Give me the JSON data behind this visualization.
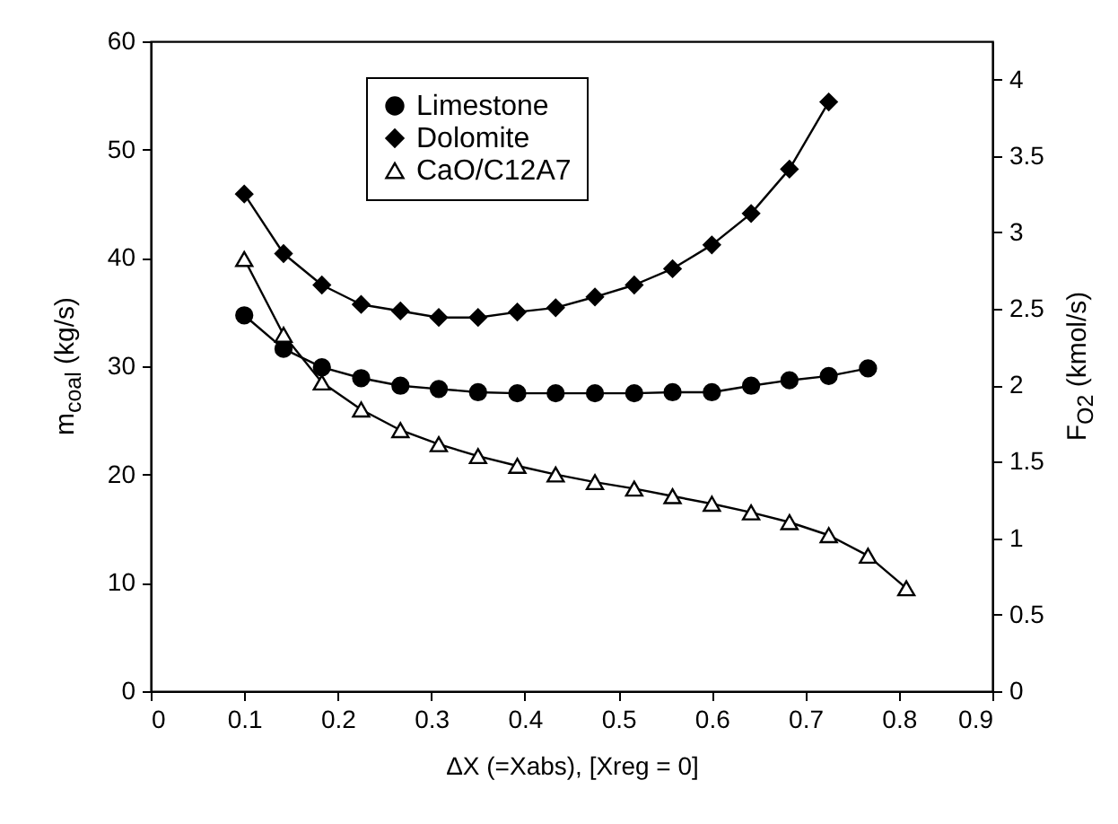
{
  "chart_data": {
    "type": "line",
    "xlabel": "ΔX (=Xabs), [Xreg = 0]",
    "ylabel": "m$_{coal}$ (kg/s)",
    "y2label": "F$_{O2}$ (kmol/s)",
    "xlim": [
      0,
      0.9
    ],
    "xticks": [
      0,
      0.1,
      0.2,
      0.3,
      0.4,
      0.5,
      0.6,
      0.7,
      0.8,
      0.9
    ],
    "ylim": [
      0,
      60
    ],
    "yticks": [
      0,
      10,
      20,
      30,
      40,
      50,
      60
    ],
    "y2lim": [
      0,
      4.25
    ],
    "y2ticks": [
      0,
      0.5,
      1,
      1.5,
      2,
      2.5,
      3,
      3.5,
      4
    ],
    "grid": false,
    "legend": "top",
    "series": [
      {
        "name": "Limestone",
        "color": "#000000",
        "marker": "circle",
        "x": [
          0.1,
          0.142,
          0.183,
          0.225,
          0.267,
          0.308,
          0.35,
          0.392,
          0.433,
          0.475,
          0.517,
          0.558,
          0.6,
          0.642,
          0.683,
          0.725,
          0.767
        ],
        "values": [
          34.7,
          31.6,
          29.9,
          28.9,
          28.2,
          27.9,
          27.6,
          27.5,
          27.5,
          27.5,
          27.5,
          27.6,
          27.6,
          28.2,
          28.7,
          29.1,
          29.8
        ]
      },
      {
        "name": "Dolomite",
        "color": "#000000",
        "marker": "diamond",
        "x": [
          0.1,
          0.142,
          0.183,
          0.225,
          0.267,
          0.308,
          0.35,
          0.392,
          0.433,
          0.475,
          0.517,
          0.558,
          0.6,
          0.642,
          0.683,
          0.725
        ],
        "values": [
          45.9,
          40.4,
          37.5,
          35.7,
          35.1,
          34.5,
          34.5,
          35.0,
          35.4,
          36.4,
          37.5,
          39.0,
          41.2,
          44.1,
          48.2,
          54.4
        ]
      },
      {
        "name": "CaO/C12A7",
        "color": "#000000",
        "marker": "triangle",
        "x": [
          0.1,
          0.142,
          0.183,
          0.225,
          0.267,
          0.308,
          0.35,
          0.392,
          0.433,
          0.475,
          0.517,
          0.558,
          0.6,
          0.642,
          0.683,
          0.725,
          0.767,
          0.808
        ],
        "values": [
          39.9,
          32.9,
          28.5,
          26.0,
          24.1,
          22.8,
          21.7,
          20.8,
          20.0,
          19.3,
          18.7,
          18.0,
          17.3,
          16.5,
          15.6,
          14.4,
          12.5,
          9.5
        ]
      }
    ]
  }
}
